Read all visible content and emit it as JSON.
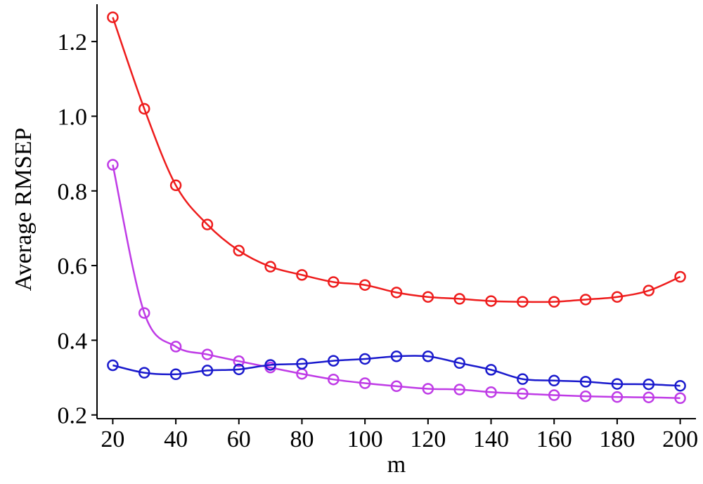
{
  "chart_data": {
    "type": "line",
    "xlabel": "m",
    "ylabel": "Average RMSEP",
    "xlim": [
      15,
      205
    ],
    "ylim": [
      0.19,
      1.3
    ],
    "xticks": [
      20,
      40,
      60,
      80,
      100,
      120,
      140,
      160,
      180,
      200
    ],
    "yticks": [
      0.2,
      0.4,
      0.6,
      0.8,
      1.0,
      1.2
    ],
    "ytick_labels": [
      "0.2",
      "0.4",
      "0.6",
      "0.8",
      "1.0",
      "1.2"
    ],
    "grid": false,
    "x": [
      20,
      30,
      40,
      50,
      60,
      70,
      80,
      90,
      100,
      110,
      120,
      130,
      140,
      150,
      160,
      170,
      180,
      190,
      200
    ],
    "series": [
      {
        "color": "#ee1c1c",
        "marker": "open-circle",
        "values": [
          1.265,
          1.02,
          0.815,
          0.71,
          0.64,
          0.597,
          0.575,
          0.556,
          0.548,
          0.528,
          0.516,
          0.511,
          0.505,
          0.503,
          0.503,
          0.509,
          0.516,
          0.533,
          0.57
        ]
      },
      {
        "color": "#bf3be6",
        "marker": "open-circle",
        "values": [
          0.87,
          0.473,
          0.383,
          0.362,
          0.344,
          0.327,
          0.31,
          0.295,
          0.285,
          0.277,
          0.27,
          0.268,
          0.261,
          0.257,
          0.253,
          0.25,
          0.248,
          0.247,
          0.245
        ]
      },
      {
        "color": "#1a1acd",
        "marker": "open-circle",
        "values": [
          0.333,
          0.313,
          0.309,
          0.319,
          0.322,
          0.334,
          0.337,
          0.345,
          0.35,
          0.357,
          0.357,
          0.339,
          0.321,
          0.296,
          0.292,
          0.289,
          0.283,
          0.282,
          0.278
        ]
      }
    ]
  }
}
